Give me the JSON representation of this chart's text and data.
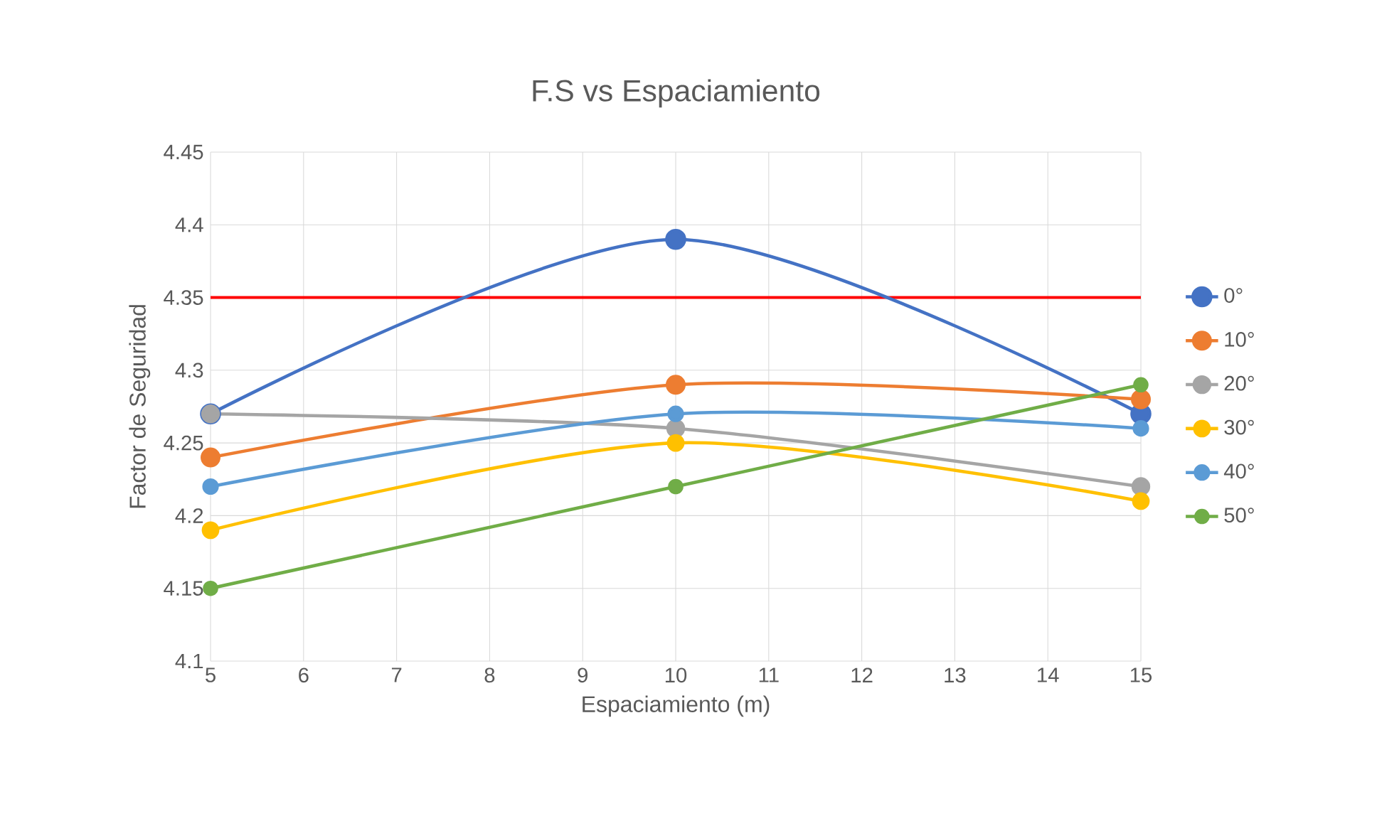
{
  "chart_data": {
    "type": "line",
    "title": "F.S vs Espaciamiento",
    "xlabel": "Espaciamiento (m)",
    "ylabel": "Factor de Seguridad",
    "x": [
      5,
      10,
      15
    ],
    "series": [
      {
        "name": "0°",
        "color": "#4472c4",
        "values": [
          4.27,
          4.39,
          4.27
        ]
      },
      {
        "name": "10°",
        "color": "#ed7d31",
        "values": [
          4.24,
          4.29,
          4.28
        ]
      },
      {
        "name": "20°",
        "color": "#a5a5a5",
        "values": [
          4.27,
          4.26,
          4.22
        ]
      },
      {
        "name": "30°",
        "color": "#ffc000",
        "values": [
          4.19,
          4.25,
          4.21
        ]
      },
      {
        "name": "40°",
        "color": "#5b9bd5",
        "values": [
          4.22,
          4.27,
          4.26
        ]
      },
      {
        "name": "50°",
        "color": "#70ad47",
        "values": [
          4.15,
          4.22,
          4.29
        ]
      }
    ],
    "ref_lines": [
      {
        "axis": "y",
        "value": 4.35,
        "color": "#ff0000"
      }
    ],
    "xlim": [
      5,
      15
    ],
    "xticks": [
      5,
      6,
      7,
      8,
      9,
      10,
      11,
      12,
      13,
      14,
      15
    ],
    "ylim": [
      4.1,
      4.45
    ],
    "yticks": [
      4.1,
      4.15,
      4.2,
      4.25,
      4.3,
      4.35,
      4.4,
      4.45
    ],
    "grid": true,
    "legend": "right",
    "marker": "circle",
    "line_style": "solid"
  }
}
